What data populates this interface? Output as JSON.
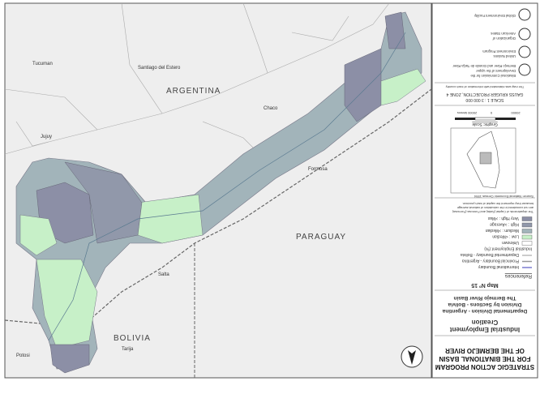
{
  "panel": {
    "title": [
      "STRATEGIC ACTION PROGRAM",
      "FOR THE BINATIONAL BASIN",
      "OF THE BERMEJO RIVER"
    ],
    "subtitle": [
      "Industrial Employment",
      "Creation"
    ],
    "divisions": [
      "Departmental Division - Argentina",
      "Division by Sections - Bolivia",
      "The Bermejo River Basin"
    ],
    "map_number": "Map Nº 15",
    "references": "References",
    "legend": [
      {
        "label": "International Boundary"
      },
      {
        "label": "Provincial Boundary - Argentina"
      },
      {
        "label": "Departmental Boundary - Bolivia"
      },
      {
        "label": "Industrial Employment (%)"
      },
      {
        "label": "Unknown"
      },
      {
        "label": "Low : <Median"
      },
      {
        "label": "Medium : >Median"
      },
      {
        "label": "High : >Average"
      },
      {
        "label": "Very High : >Max"
      }
    ],
    "footnote": [
      "The departments of Capital (Salta) and Formosa (Formosa)",
      "are not considered in the calculation of national average",
      "because they represent the capital of each province."
    ],
    "source": "Source: National Economic Census 1994",
    "graphic_scale": "Graphic Scale",
    "scale_ticks": [
      "20000",
      "0",
      "20000 Meters"
    ],
    "projection": [
      "SCALE 1 : 3 000 000",
      "GAUSS KRUGER PROJECTION, ZONE 4"
    ],
    "credit": "The map was elaborated with information of each country",
    "logos": [
      "Binational Commission for the",
      "Development of the Upper",
      "Bermejo River and Grande de Tarija River",
      "United Nations",
      "Environment Program",
      "Organization of",
      "American States",
      "Global Environment Facility"
    ]
  },
  "map": {
    "labels": [
      "ARGENTINA",
      "PARAGUAY",
      "BOLIVIA",
      "Chaco",
      "Formosa",
      "Salta",
      "Tarija",
      "Potosi",
      "Tucuman",
      "Santiago del Estero",
      "Jujuy"
    ]
  }
}
